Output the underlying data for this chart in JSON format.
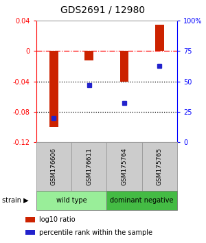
{
  "title": "GDS2691 / 12980",
  "samples": [
    "GSM176606",
    "GSM176611",
    "GSM175764",
    "GSM175765"
  ],
  "log10_ratio": [
    -0.1,
    -0.012,
    -0.04,
    0.035
  ],
  "percentile_rank": [
    20,
    47,
    32,
    63
  ],
  "ylim_left": [
    -0.12,
    0.04
  ],
  "ylim_right": [
    0,
    100
  ],
  "yticks_left": [
    0.04,
    0.0,
    -0.04,
    -0.08,
    -0.12
  ],
  "ytick_labels_left": [
    "0.04",
    "0",
    "-0.04",
    "-0.08",
    "-0.12"
  ],
  "yticks_right": [
    100,
    75,
    50,
    25,
    0
  ],
  "ytick_labels_right": [
    "100%",
    "75",
    "50",
    "25",
    "0"
  ],
  "hlines_dotted": [
    -0.04,
    -0.08
  ],
  "hline_dashdot": 0.0,
  "bar_color": "#cc2200",
  "marker_color": "#2222cc",
  "strain_groups": [
    {
      "label": "wild type",
      "color": "#99ee99",
      "span": [
        0,
        2
      ]
    },
    {
      "label": "dominant negative",
      "color": "#44bb44",
      "span": [
        2,
        4
      ]
    }
  ],
  "strain_label": "strain",
  "legend_ratio_label": "log10 ratio",
  "legend_pct_label": "percentile rank within the sample",
  "bg_color": "#ffffff",
  "plot_bg_color": "#ffffff",
  "gray_box_color": "#cccccc",
  "gray_box_edge_color": "#999999",
  "bar_width": 0.25
}
